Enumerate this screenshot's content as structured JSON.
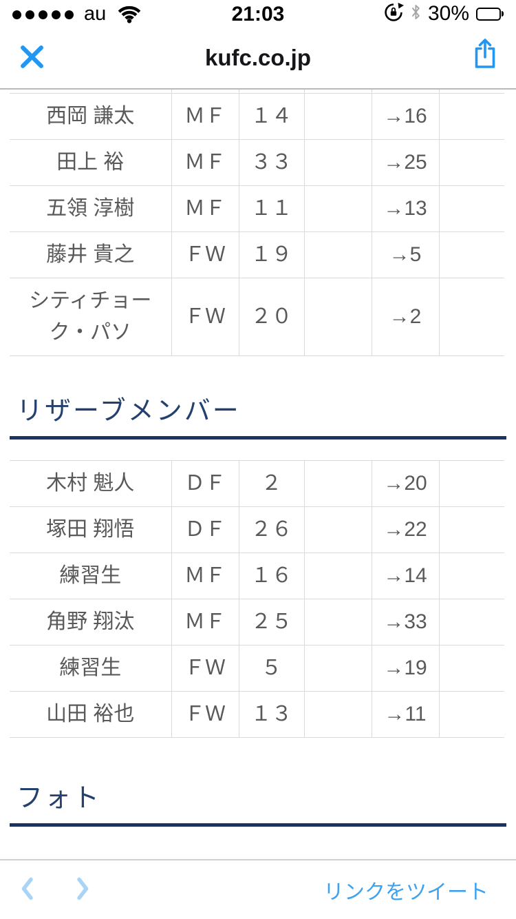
{
  "status_bar": {
    "carrier": "au",
    "time": "21:03",
    "battery_percent": "30%",
    "battery_level": 0.3,
    "signal_dots_filled": 5,
    "icons": [
      "signal-dots",
      "wifi-icon",
      "rotation-lock-icon",
      "bluetooth-icon",
      "battery-icon"
    ]
  },
  "header": {
    "title": "kufc.co.jp",
    "icons": [
      "close-icon",
      "share-icon"
    ]
  },
  "starters": {
    "rows": [
      {
        "name": "西岡 謙太",
        "position": "ＭＦ",
        "number": "１４",
        "change": "→16"
      },
      {
        "name": "田上 裕",
        "position": "ＭＦ",
        "number": "３３",
        "change": "→25"
      },
      {
        "name": "五領 淳樹",
        "position": "ＭＦ",
        "number": "１１",
        "change": "→13"
      },
      {
        "name": "藤井 貴之",
        "position": "ＦＷ",
        "number": "１９",
        "change": "→5"
      },
      {
        "name": "シティチョーク・パソ",
        "position": "ＦＷ",
        "number": "２０",
        "change": "→2"
      }
    ]
  },
  "reserve": {
    "heading": "リザーブメンバー",
    "rows": [
      {
        "name": "木村 魁人",
        "position": "ＤＦ",
        "number": "２",
        "change": "→20"
      },
      {
        "name": "塚田 翔悟",
        "position": "ＤＦ",
        "number": "２６",
        "change": "→22"
      },
      {
        "name": "練習生",
        "position": "ＭＦ",
        "number": "１６",
        "change": "→14"
      },
      {
        "name": "角野 翔汰",
        "position": "ＭＦ",
        "number": "２５",
        "change": "→33"
      },
      {
        "name": "練習生",
        "position": "ＦＷ",
        "number": "５",
        "change": "→19"
      },
      {
        "name": "山田 裕也",
        "position": "ＦＷ",
        "number": "１３",
        "change": "→11"
      }
    ]
  },
  "photo": {
    "heading": "フォト"
  },
  "toolbar": {
    "tweet_label": "リンクをツイート",
    "icons": [
      "back-chevron-icon",
      "forward-chevron-icon"
    ]
  },
  "colors": {
    "accent_blue": "#2196f3",
    "link_blue": "#3fa2ee",
    "chevron_pale_blue": "#a9d4f6",
    "heading_navy": "#24406e",
    "rule_navy": "#1a3361",
    "table_text_gray": "#595959",
    "table_border_gray": "#dadada"
  }
}
